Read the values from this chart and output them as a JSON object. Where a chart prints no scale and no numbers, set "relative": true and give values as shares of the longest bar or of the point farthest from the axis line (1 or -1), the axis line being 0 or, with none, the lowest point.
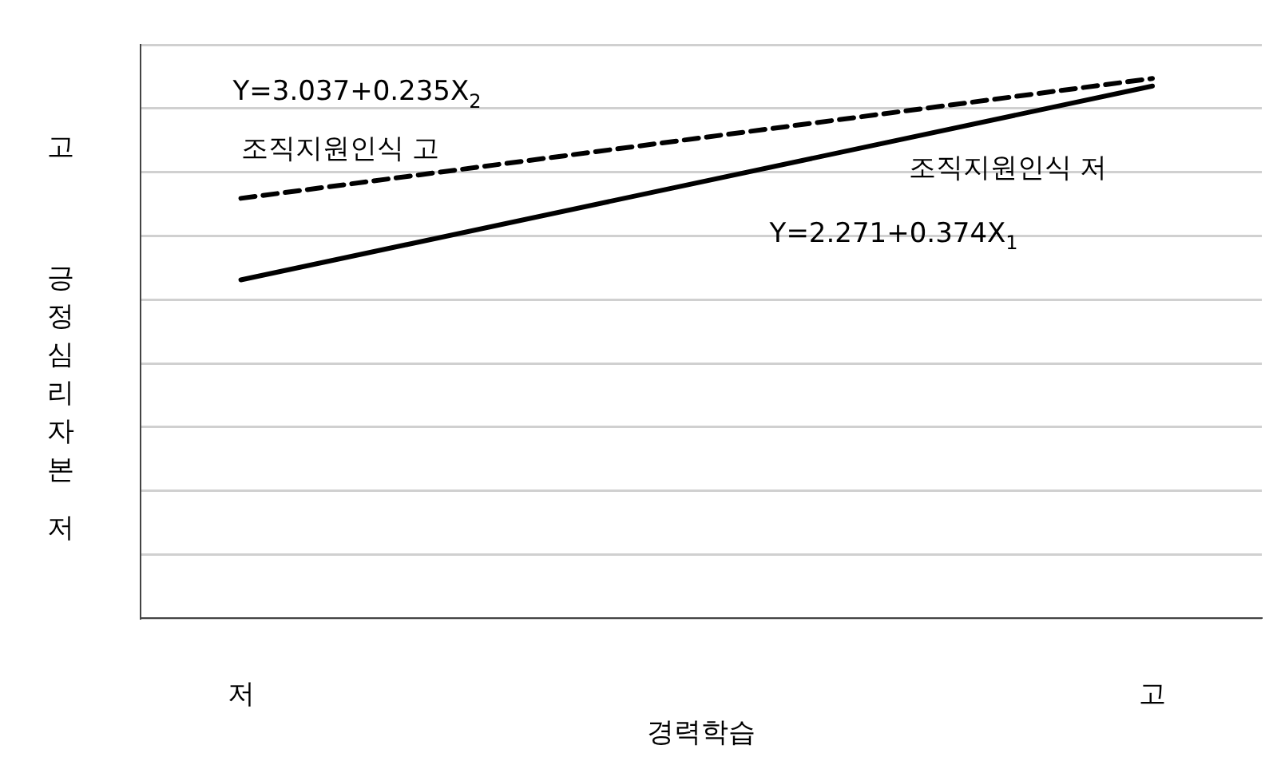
{
  "chart_data": {
    "type": "line",
    "relative": true,
    "categories": [
      "저",
      "고"
    ],
    "xlabel": "경력학습",
    "ylabel": "긍정심리자본",
    "grid": "y",
    "marker": "none",
    "series": [
      {
        "name": "조직지원인식 고",
        "color": "#000000",
        "line_style": "dashed",
        "values": [
          0.778,
          1
        ]
      },
      {
        "name": "조직지원인식 저",
        "color": "#000000",
        "line_style": "solid",
        "values": [
          0.627,
          0.986
        ]
      }
    ],
    "annotations": [
      "Y=3.037+0.235X$_{2}$",
      "Y=2.271+0.374X$_{1}$",
      "고",
      "저"
    ]
  }
}
